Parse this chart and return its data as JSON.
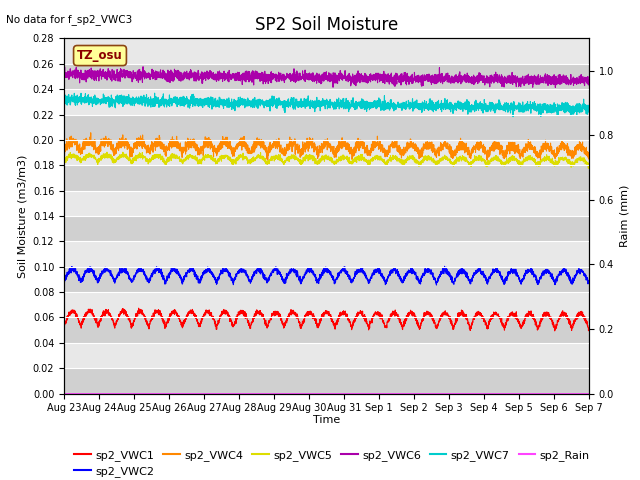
{
  "title": "SP2 Soil Moisture",
  "no_data_text": "No data for f_sp2_VWC3",
  "xlabel": "Time",
  "ylabel_left": "Soil Moisture (m3/m3)",
  "ylabel_right": "Raim (mm)",
  "ylim_left": [
    0.0,
    0.28
  ],
  "ylim_right": [
    0.0,
    1.1
  ],
  "bg_light": "#e8e8e8",
  "bg_dark": "#d0d0d0",
  "tz_label": "TZ_osu",
  "tz_box_facecolor": "#ffff99",
  "tz_box_edgecolor": "#8b4513",
  "series": {
    "sp2_VWC1": {
      "color": "#ff0000",
      "base": 0.053,
      "amplitude": 0.012,
      "trend": -0.002,
      "noise": 0.001
    },
    "sp2_VWC2": {
      "color": "#0000ff",
      "base": 0.088,
      "amplitude": 0.01,
      "trend": -0.001,
      "noise": 0.001
    },
    "sp2_VWC4": {
      "color": "#ff8800",
      "base": 0.191,
      "amplitude": 0.008,
      "trend": -0.004,
      "noise": 0.002
    },
    "sp2_VWC5": {
      "color": "#dddd00",
      "base": 0.183,
      "amplitude": 0.005,
      "trend": -0.003,
      "noise": 0.001
    },
    "sp2_VWC6": {
      "color": "#aa00aa",
      "base": 0.251,
      "amplitude": 0.001,
      "trend": -0.005,
      "noise": 0.002
    },
    "sp2_VWC7": {
      "color": "#00cccc",
      "base": 0.231,
      "amplitude": 0.001,
      "trend": -0.007,
      "noise": 0.002
    },
    "sp2_Rain": {
      "color": "#ff44ff",
      "base": 0.0,
      "amplitude": 0.0,
      "trend": 0.0,
      "noise": 0.0
    }
  },
  "x_tick_labels": [
    "Aug 23",
    "Aug 24",
    "Aug 25",
    "Aug 26",
    "Aug 27",
    "Aug 28",
    "Aug 29",
    "Aug 30",
    "Aug 31",
    "Sep 1",
    "Sep 2",
    "Sep 3",
    "Sep 4",
    "Sep 5",
    "Sep 6",
    "Sep 7"
  ],
  "num_points": 3360,
  "days": 15.5,
  "period_hours": 12,
  "title_fontsize": 12,
  "axis_fontsize": 8,
  "tick_fontsize": 7,
  "legend_fontsize": 8
}
